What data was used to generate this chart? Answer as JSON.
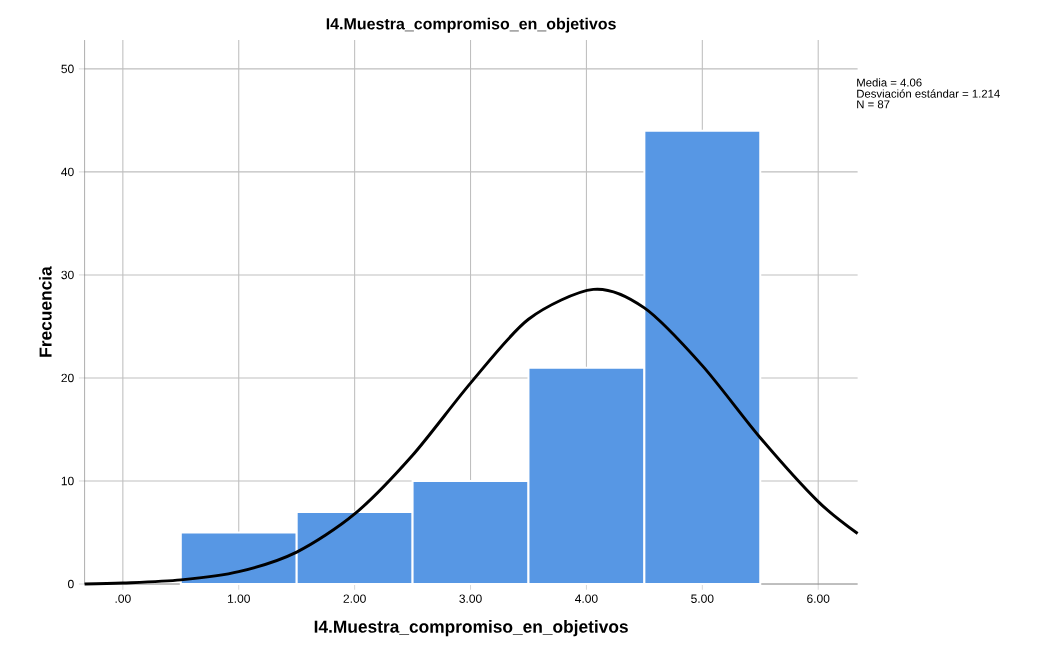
{
  "chart_data": {
    "type": "histogram",
    "title": "I4.Muestra_compromiso_en_objetivos",
    "xlabel": "I4.Muestra_compromiso_en_objetivos",
    "ylabel": "Frecuencia",
    "bins": [
      0.5,
      1.5,
      2.5,
      3.5,
      4.5,
      5.5
    ],
    "values": [
      5,
      7,
      10,
      21,
      44
    ],
    "color": "#5797e4",
    "series": [
      {
        "type": "line",
        "color": "#000000",
        "x": [
          -0.33,
          0,
          0.5,
          1,
          1.5,
          2,
          2.5,
          3,
          3.5,
          4.06,
          4.5,
          5,
          5.5,
          6,
          6.34
        ],
        "values": [
          0.0,
          0.1,
          0.4,
          1.2,
          3.1,
          6.8,
          12.5,
          19.5,
          25.7,
          28.6,
          26.8,
          21.2,
          14.2,
          8.0,
          4.9
        ]
      }
    ],
    "xlim": [
      -0.33,
      6.34
    ],
    "ylim": [
      0,
      52.8
    ],
    "xticks": [
      {
        "value": 0,
        "label": ".00"
      },
      {
        "value": 1,
        "label": "1.00"
      },
      {
        "value": 2,
        "label": "2.00"
      },
      {
        "value": 3,
        "label": "3.00"
      },
      {
        "value": 4,
        "label": "4.00"
      },
      {
        "value": 5,
        "label": "5.00"
      },
      {
        "value": 6,
        "label": "6.00"
      }
    ],
    "yticks": [
      0,
      10,
      20,
      30,
      40,
      50
    ],
    "grid": true,
    "annotations": [
      "Media = 4.06",
      "Desviación estándar = 1.214",
      "N = 87"
    ]
  }
}
